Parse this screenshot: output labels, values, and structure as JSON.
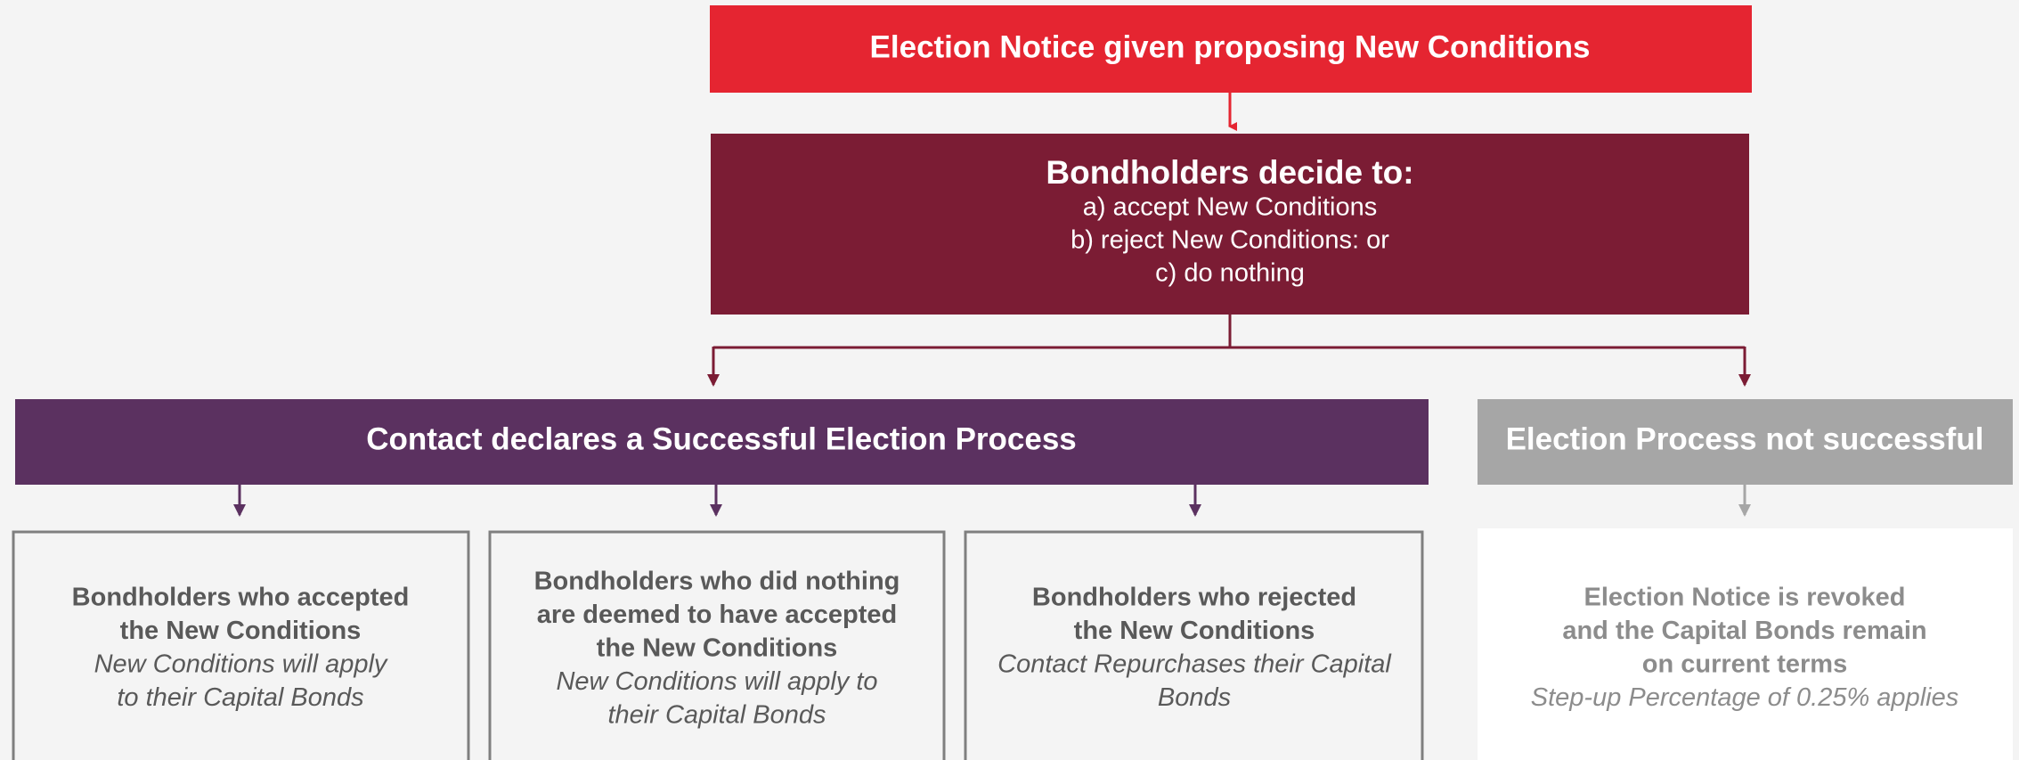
{
  "nodes": [
    {
      "text": "Election Notice given proposing New Conditions"
    },
    {
      "title": "Bondholders decide to:",
      "lines": [
        "a) accept New Conditions",
        "b) reject New Conditions: or",
        "c) do nothing"
      ]
    },
    {
      "text": "Contact declares a Successful Election Process"
    },
    {
      "text": "Election Process not successful"
    },
    {
      "bold": [
        "Bondholders who accepted",
        "the New Conditions"
      ],
      "italic": [
        "New Conditions will apply",
        "to their Capital Bonds"
      ]
    },
    {
      "bold": [
        "Bondholders who did nothing",
        "are deemed to have accepted",
        "the New Conditions"
      ],
      "italic": [
        "New Conditions will apply to",
        "their Capital Bonds"
      ]
    },
    {
      "bold": [
        "Bondholders who rejected",
        "the New Conditions"
      ],
      "italic": [
        "Contact Repurchases their Capital",
        "Bonds"
      ]
    },
    {
      "bold": [
        "Election Notice is revoked",
        "and the Capital Bonds remain",
        "on current terms"
      ],
      "italic": [
        "Step-up Percentage of 0.25% applies"
      ]
    }
  ]
}
